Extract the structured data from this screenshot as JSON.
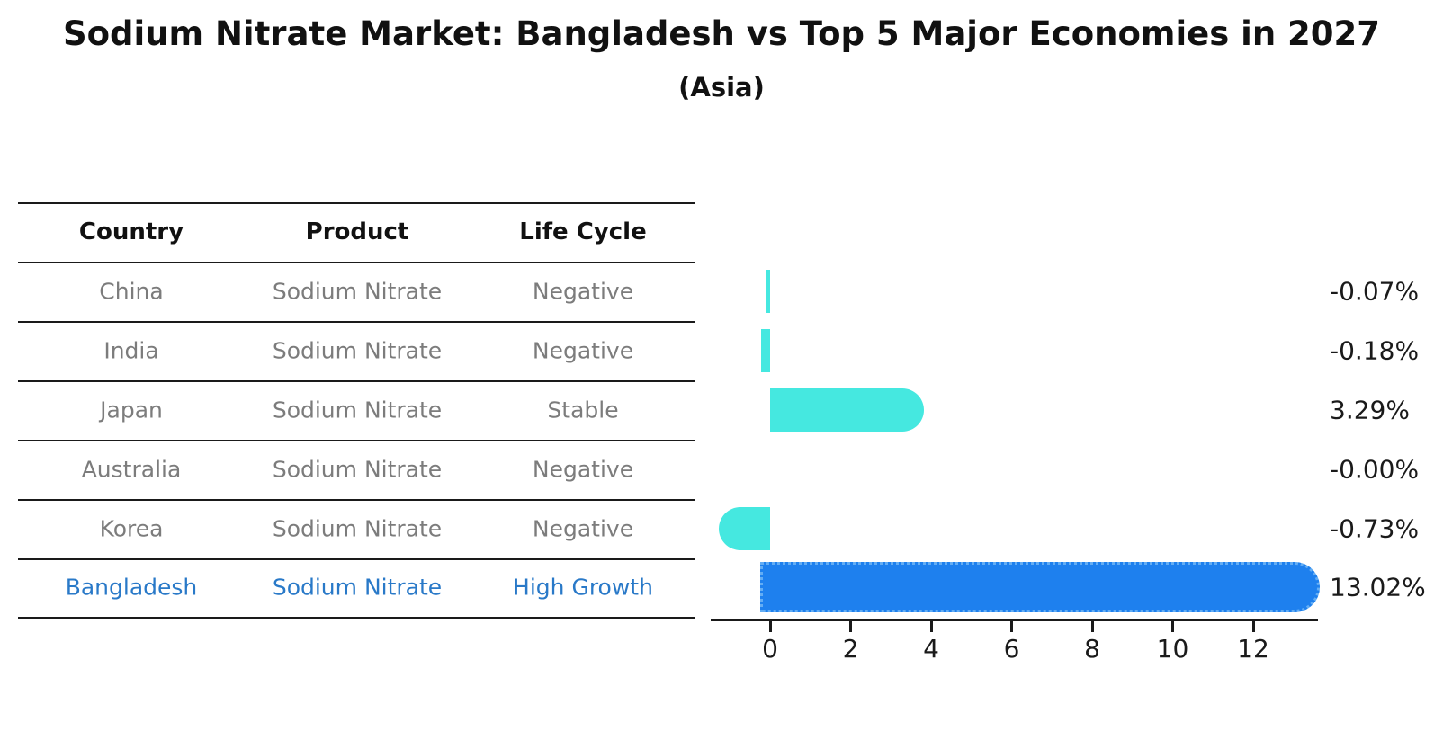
{
  "title": "Sodium Nitrate Market: Bangladesh vs Top 5 Major Economies in 2027",
  "subtitle": "(Asia)",
  "table": {
    "headers": [
      "Country",
      "Product",
      "Life Cycle"
    ],
    "rows": [
      {
        "country": "China",
        "product": "Sodium Nitrate",
        "life_cycle": "Negative",
        "highlight": false
      },
      {
        "country": "India",
        "product": "Sodium Nitrate",
        "life_cycle": "Negative",
        "highlight": false
      },
      {
        "country": "Japan",
        "product": "Sodium Nitrate",
        "life_cycle": "Stable",
        "highlight": false
      },
      {
        "country": "Australia",
        "product": "Sodium Nitrate",
        "life_cycle": "Negative",
        "highlight": false
      },
      {
        "country": "Korea",
        "product": "Sodium Nitrate",
        "life_cycle": "Negative",
        "highlight": false
      },
      {
        "country": "Bangladesh",
        "product": "Sodium Nitrate",
        "life_cycle": "High Growth",
        "highlight": true
      }
    ]
  },
  "chart_data": {
    "type": "bar",
    "orientation": "horizontal",
    "title": "Sodium Nitrate Market: Bangladesh vs Top 5 Major Economies in 2027",
    "subtitle": "(Asia)",
    "categories": [
      "China",
      "India",
      "Japan",
      "Australia",
      "Korea",
      "Bangladesh"
    ],
    "values": [
      -0.07,
      -0.18,
      3.29,
      -0.0,
      -0.73,
      13.02
    ],
    "value_labels": [
      "-0.07%",
      "-0.18%",
      "3.29%",
      "-0.00%",
      "-0.73%",
      "13.02%"
    ],
    "xticks": [
      0,
      2,
      4,
      6,
      8,
      10,
      12
    ],
    "xlim": [
      -1.5,
      13.6
    ],
    "grid": false,
    "legend": "none",
    "bar_color": "#45E8E0",
    "highlight_bar_color": "#1E80EE",
    "highlight_border_color": "#63ADF4",
    "highlight_index": 5,
    "row_text_color": "#7c7c7c",
    "highlight_text_color": "#2979C8",
    "axis_color": "#1a1a1a"
  }
}
